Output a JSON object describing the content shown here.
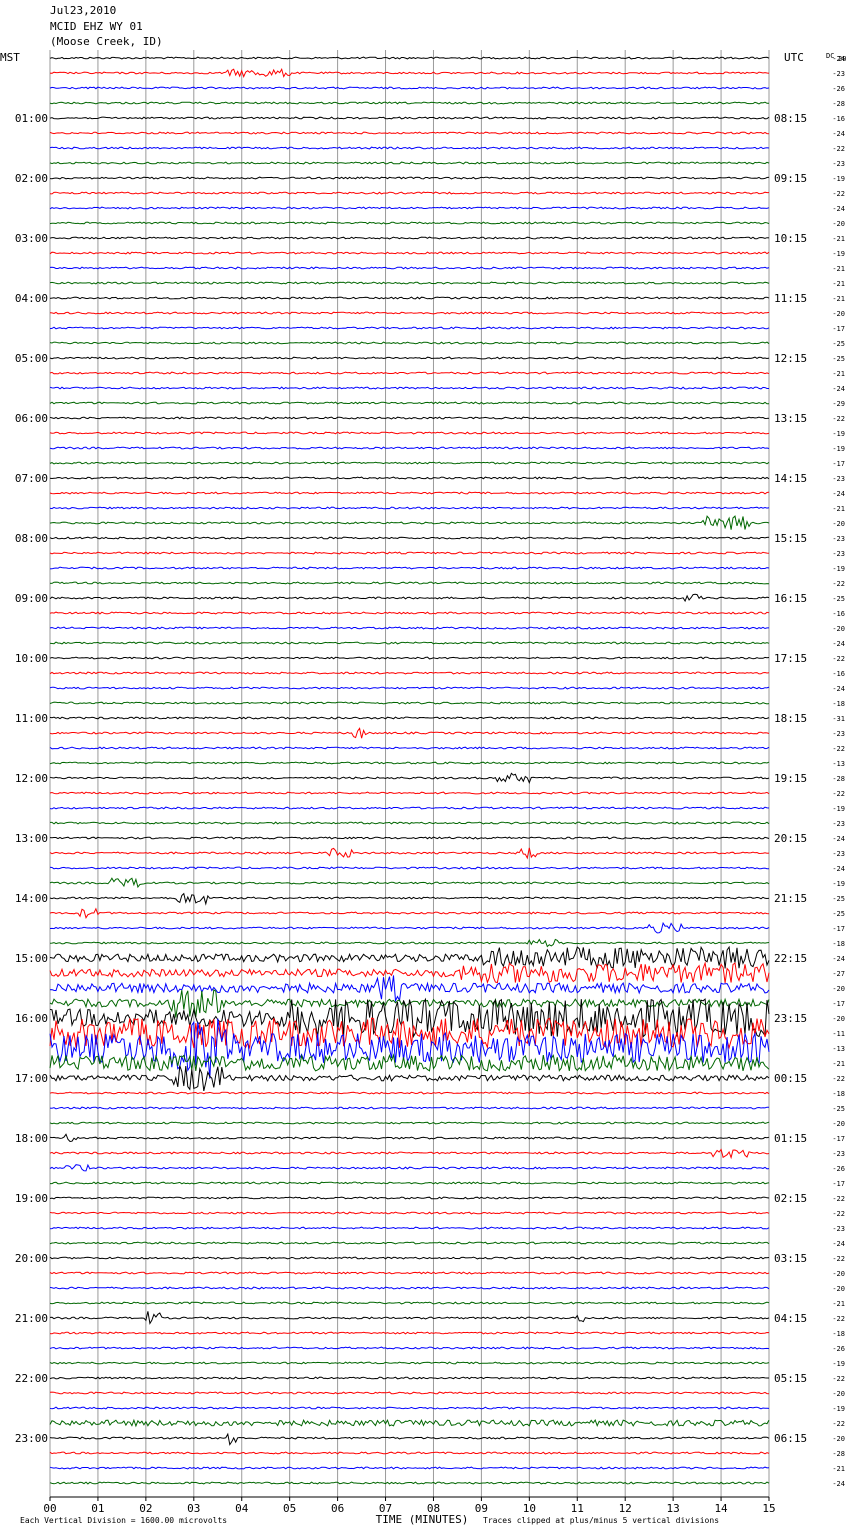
{
  "header": {
    "date": "Jul23,2010",
    "station": "MCID EHZ WY 01",
    "location": "(Moose Creek, ID)"
  },
  "chart_data": {
    "type": "line",
    "left_label": "MST",
    "right_label": "UTC",
    "dc_label": "DC",
    "dc_first": "20",
    "xlabel": "TIME (MINUTES)",
    "x_ticks": [
      "00",
      "01",
      "02",
      "03",
      "04",
      "05",
      "06",
      "07",
      "08",
      "09",
      "10",
      "11",
      "12",
      "13",
      "14",
      "15"
    ],
    "xlim": [
      0,
      15
    ],
    "trace_colors": [
      "#000000",
      "#ff0000",
      "#0000ff",
      "#006600"
    ],
    "traces_per_hour": 4,
    "mst_labels": [
      "01:00",
      "02:00",
      "03:00",
      "04:00",
      "05:00",
      "06:00",
      "07:00",
      "08:00",
      "09:00",
      "10:00",
      "11:00",
      "12:00",
      "13:00",
      "14:00",
      "15:00",
      "16:00",
      "17:00",
      "18:00",
      "19:00",
      "20:00",
      "21:00",
      "22:00",
      "23:00"
    ],
    "utc_labels": [
      "08:15",
      "09:15",
      "10:15",
      "11:15",
      "12:15",
      "13:15",
      "14:15",
      "15:15",
      "16:15",
      "17:15",
      "18:15",
      "19:15",
      "20:15",
      "21:15",
      "22:15",
      "23:15",
      "00:15",
      "01:15",
      "02:15",
      "03:15",
      "04:15",
      "05:15",
      "06:15"
    ],
    "dc_offsets": [
      -24,
      -23,
      -26,
      -28,
      -16,
      -24,
      -22,
      -23,
      -19,
      -22,
      -24,
      -20,
      -21,
      -19,
      -21,
      -21,
      -21,
      -20,
      -17,
      -25,
      -25,
      -21,
      -24,
      -29,
      -22,
      -19,
      -19,
      -17,
      -23,
      -24,
      -21,
      -20,
      -23,
      -23,
      -19,
      -22,
      -25,
      -16,
      -20,
      -24,
      -22,
      -16,
      -24,
      -18,
      -31,
      -23,
      -22,
      -13,
      -28,
      -22,
      -19,
      -23,
      -24,
      -23,
      -24,
      -19,
      -25,
      -25,
      -17,
      -18,
      -24,
      -27,
      -20,
      -17,
      -20,
      -11,
      -13,
      -21,
      -22,
      -18,
      -25,
      -20,
      -17,
      -23,
      -26,
      -17,
      -22,
      -22,
      -23,
      -24,
      -22,
      -20,
      -20,
      -21,
      -22,
      -18,
      -26,
      -19,
      -22,
      -20,
      -19,
      -22,
      -20,
      -28,
      -21,
      -24
    ],
    "footer_left": "Each Vertical Division = 1600.00 microvolts",
    "footer_right": "Traces clipped at plus/minus 5 vertical divisions"
  }
}
